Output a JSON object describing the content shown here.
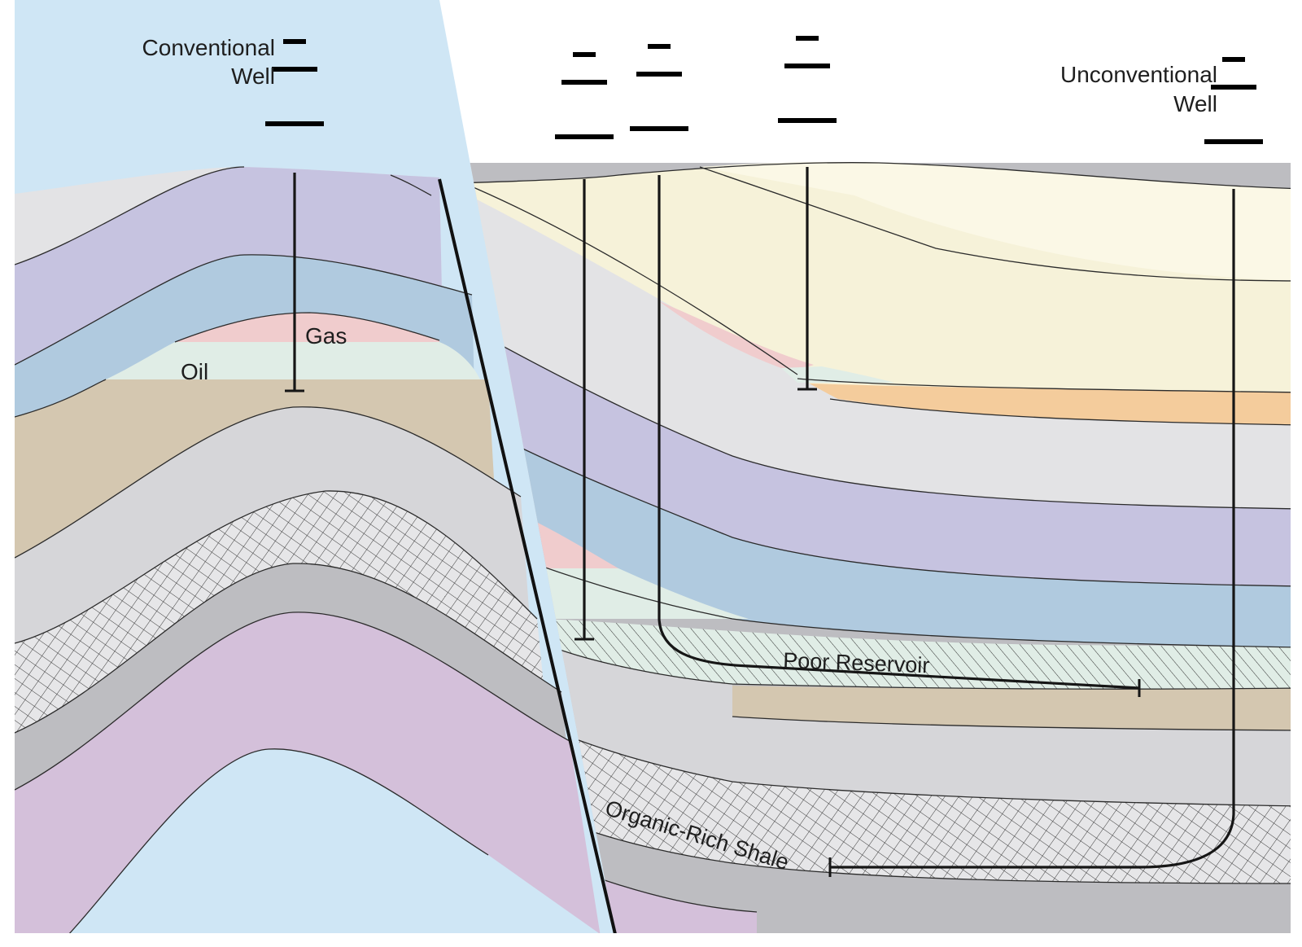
{
  "labels": {
    "conventional_well_line1": "Conventional",
    "conventional_well_line2": "Well",
    "unconventional_well_line1": "Unconventional",
    "unconventional_well_line2": "Well",
    "gas": "Gas",
    "oil": "Oil",
    "poor_reservoir": "Poor Reservoir",
    "organic_rich_shale": "Organic-Rich Shale"
  },
  "colors": {
    "pale_gray": "#e3e3e5",
    "lavender": "#c6c3e0",
    "steel_blue": "#b0cadf",
    "gas_pink": "#f0cccd",
    "oil_mint": "#e0ede6",
    "tan": "#d4c7b0",
    "light_gray": "#d6d6d9",
    "hatched_gray": "#e6e6e8",
    "mid_gray": "#bdbdc1",
    "mauve": "#d4c0da",
    "sky_blue": "#cfe6f5",
    "cream": "#f6f2d9",
    "cream_light": "#fbf8e6",
    "orange": "#f4cc9c",
    "rig_color": "#111111"
  },
  "icons": [
    "drilling-rig-icon"
  ]
}
